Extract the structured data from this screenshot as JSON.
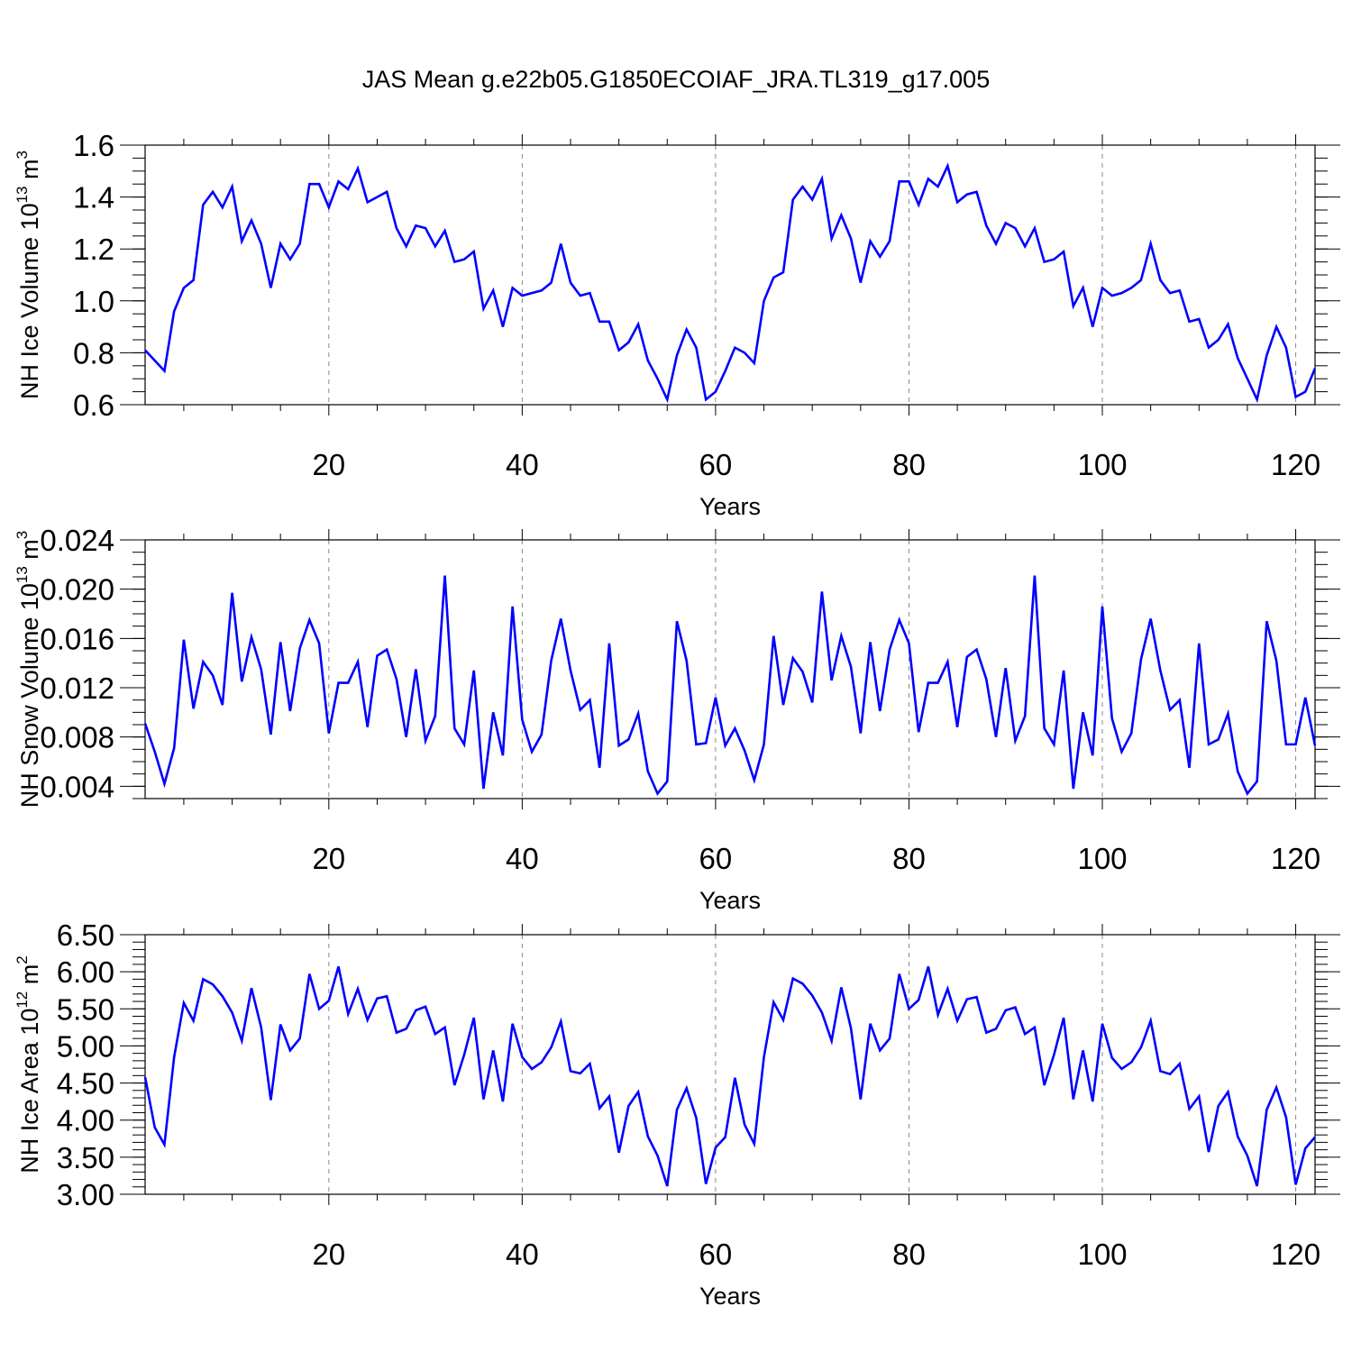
{
  "figure": {
    "title": "JAS Mean g.e22b05.G1850ECOIAF_JRA.TL319_g17.005",
    "line_color": "#0000ff",
    "grid_color": "#888888",
    "axis_color": "#000000"
  },
  "chart_data": [
    {
      "type": "line",
      "id": "ice-volume",
      "ylabel": "NH Ice Volume 10",
      "ylabel_exp": "13",
      "ylabel_unit": "m",
      "ylabel_unit_exp": "3",
      "xlabel": "Years",
      "xlim": [
        1,
        122
      ],
      "ylim": [
        0.6,
        1.6
      ],
      "xticks": [
        20,
        40,
        60,
        80,
        100,
        120
      ],
      "xtick_labels": [
        "20",
        "40",
        "60",
        "80",
        "100",
        "120"
      ],
      "yticks": [
        0.6,
        0.8,
        1.0,
        1.2,
        1.4,
        1.6
      ],
      "ytick_labels": [
        "0.6",
        "0.8",
        "1.0",
        "1.2",
        "1.4",
        "1.6"
      ],
      "y_minor_step": 0.05,
      "grid_x": [
        20,
        40,
        60,
        80,
        100,
        120
      ],
      "series": [
        {
          "name": "NH Ice Volume",
          "values": [
            0.81,
            0.77,
            0.73,
            0.96,
            1.05,
            1.08,
            1.37,
            1.42,
            1.36,
            1.44,
            1.23,
            1.31,
            1.22,
            1.05,
            1.22,
            1.16,
            1.22,
            1.45,
            1.45,
            1.36,
            1.46,
            1.43,
            1.51,
            1.38,
            1.4,
            1.42,
            1.28,
            1.21,
            1.29,
            1.28,
            1.21,
            1.27,
            1.15,
            1.16,
            1.19,
            0.97,
            1.04,
            0.9,
            1.05,
            1.02,
            1.03,
            1.04,
            1.07,
            1.22,
            1.07,
            1.02,
            1.03,
            0.92,
            0.92,
            0.81,
            0.84,
            0.91,
            0.77,
            0.7,
            0.62,
            0.79,
            0.89,
            0.82,
            0.62,
            0.65,
            0.73,
            0.82,
            0.8,
            0.76,
            1.0,
            1.09,
            1.11,
            1.39,
            1.44,
            1.39,
            1.47,
            1.24,
            1.33,
            1.24,
            1.07,
            1.23,
            1.17,
            1.23,
            1.46,
            1.46,
            1.37,
            1.47,
            1.44,
            1.52,
            1.38,
            1.41,
            1.42,
            1.29,
            1.22,
            1.3,
            1.28,
            1.21,
            1.28,
            1.15,
            1.16,
            1.19,
            0.98,
            1.05,
            0.9,
            1.05,
            1.02,
            1.03,
            1.05,
            1.08,
            1.22,
            1.08,
            1.03,
            1.04,
            0.92,
            0.93,
            0.82,
            0.85,
            0.91,
            0.78,
            0.7,
            0.62,
            0.79,
            0.9,
            0.82,
            0.63,
            0.65,
            0.74
          ]
        }
      ]
    },
    {
      "type": "line",
      "id": "snow-volume",
      "ylabel": "NH Snow Volume 10",
      "ylabel_exp": "13",
      "ylabel_unit": "m",
      "ylabel_unit_exp": "3",
      "xlabel": "Years",
      "xlim": [
        1,
        122
      ],
      "ylim": [
        0.003,
        0.024
      ],
      "xticks": [
        20,
        40,
        60,
        80,
        100,
        120
      ],
      "xtick_labels": [
        "20",
        "40",
        "60",
        "80",
        "100",
        "120"
      ],
      "yticks": [
        0.004,
        0.008,
        0.012,
        0.016,
        0.02,
        0.024
      ],
      "ytick_labels": [
        "0.004",
        "0.008",
        "0.012",
        "0.016",
        "0.020",
        "0.024"
      ],
      "y_minor_step": 0.001,
      "grid_x": [
        20,
        40,
        60,
        80,
        100,
        120
      ],
      "series": [
        {
          "name": "NH Snow Volume",
          "values": [
            0.0091,
            0.0068,
            0.0042,
            0.0071,
            0.0159,
            0.0103,
            0.0141,
            0.013,
            0.0106,
            0.0197,
            0.0125,
            0.0161,
            0.0135,
            0.0082,
            0.0157,
            0.0101,
            0.0152,
            0.0175,
            0.0156,
            0.0083,
            0.0124,
            0.0124,
            0.0141,
            0.0088,
            0.0146,
            0.0151,
            0.0127,
            0.008,
            0.0135,
            0.0077,
            0.0097,
            0.0211,
            0.0087,
            0.0074,
            0.0134,
            0.0038,
            0.01,
            0.0065,
            0.0186,
            0.0094,
            0.0068,
            0.0082,
            0.0142,
            0.0176,
            0.0134,
            0.0102,
            0.011,
            0.0055,
            0.0156,
            0.0073,
            0.0078,
            0.0099,
            0.0052,
            0.0034,
            0.0044,
            0.0174,
            0.0142,
            0.0074,
            0.0075,
            0.0112,
            0.0073,
            0.0087,
            0.0069,
            0.0045,
            0.0074,
            0.0162,
            0.0106,
            0.0144,
            0.0133,
            0.0108,
            0.0198,
            0.0126,
            0.0162,
            0.0137,
            0.0083,
            0.0157,
            0.0101,
            0.0151,
            0.0175,
            0.0156,
            0.0084,
            0.0124,
            0.0124,
            0.0141,
            0.0088,
            0.0145,
            0.0151,
            0.0127,
            0.008,
            0.0136,
            0.0077,
            0.0097,
            0.0211,
            0.0087,
            0.0074,
            0.0134,
            0.0038,
            0.01,
            0.0065,
            0.0186,
            0.0095,
            0.0068,
            0.0083,
            0.0143,
            0.0176,
            0.0134,
            0.0102,
            0.011,
            0.0055,
            0.0156,
            0.0074,
            0.0078,
            0.0099,
            0.0052,
            0.0034,
            0.0044,
            0.0174,
            0.0142,
            0.0074,
            0.0074,
            0.0112,
            0.0073
          ]
        }
      ]
    },
    {
      "type": "line",
      "id": "ice-area",
      "ylabel": "NH Ice Area 10",
      "ylabel_exp": "12",
      "ylabel_unit": "m",
      "ylabel_unit_exp": "2",
      "xlabel": "Years",
      "xlim": [
        1,
        122
      ],
      "ylim": [
        3.0,
        6.5
      ],
      "xticks": [
        20,
        40,
        60,
        80,
        100,
        120
      ],
      "xtick_labels": [
        "20",
        "40",
        "60",
        "80",
        "100",
        "120"
      ],
      "yticks": [
        3.0,
        3.5,
        4.0,
        4.5,
        5.0,
        5.5,
        6.0,
        6.5
      ],
      "ytick_labels": [
        "3.00",
        "3.50",
        "4.00",
        "4.50",
        "5.00",
        "5.50",
        "6.00",
        "6.50"
      ],
      "y_minor_step": 0.1,
      "grid_x": [
        20,
        40,
        60,
        80,
        100,
        120
      ],
      "series": [
        {
          "name": "NH Ice Area",
          "values": [
            4.58,
            3.9,
            3.67,
            4.85,
            5.58,
            5.34,
            5.9,
            5.83,
            5.67,
            5.45,
            5.07,
            5.78,
            5.25,
            4.27,
            5.29,
            4.94,
            5.1,
            5.97,
            5.5,
            5.61,
            6.07,
            5.43,
            5.77,
            5.35,
            5.64,
            5.67,
            5.18,
            5.23,
            5.48,
            5.53,
            5.16,
            5.25,
            4.47,
            4.88,
            5.38,
            4.28,
            4.94,
            4.25,
            5.3,
            4.85,
            4.69,
            4.78,
            4.98,
            5.33,
            4.66,
            4.63,
            4.76,
            4.16,
            4.32,
            3.56,
            4.19,
            4.38,
            3.78,
            3.52,
            3.11,
            4.14,
            4.43,
            4.03,
            3.14,
            3.63,
            3.77,
            4.57,
            3.94,
            3.68,
            4.85,
            5.59,
            5.35,
            5.91,
            5.84,
            5.68,
            5.45,
            5.07,
            5.79,
            5.24,
            4.28,
            5.3,
            4.94,
            5.1,
            5.97,
            5.5,
            5.62,
            6.07,
            5.42,
            5.77,
            5.34,
            5.63,
            5.66,
            5.18,
            5.23,
            5.48,
            5.52,
            5.16,
            5.25,
            4.47,
            4.88,
            5.38,
            4.28,
            4.94,
            4.25,
            5.3,
            4.84,
            4.69,
            4.78,
            4.98,
            5.34,
            4.66,
            4.62,
            4.76,
            4.15,
            4.32,
            3.57,
            4.19,
            4.38,
            3.78,
            3.52,
            3.11,
            4.14,
            4.44,
            4.04,
            3.13,
            3.62,
            3.77
          ]
        }
      ]
    }
  ]
}
